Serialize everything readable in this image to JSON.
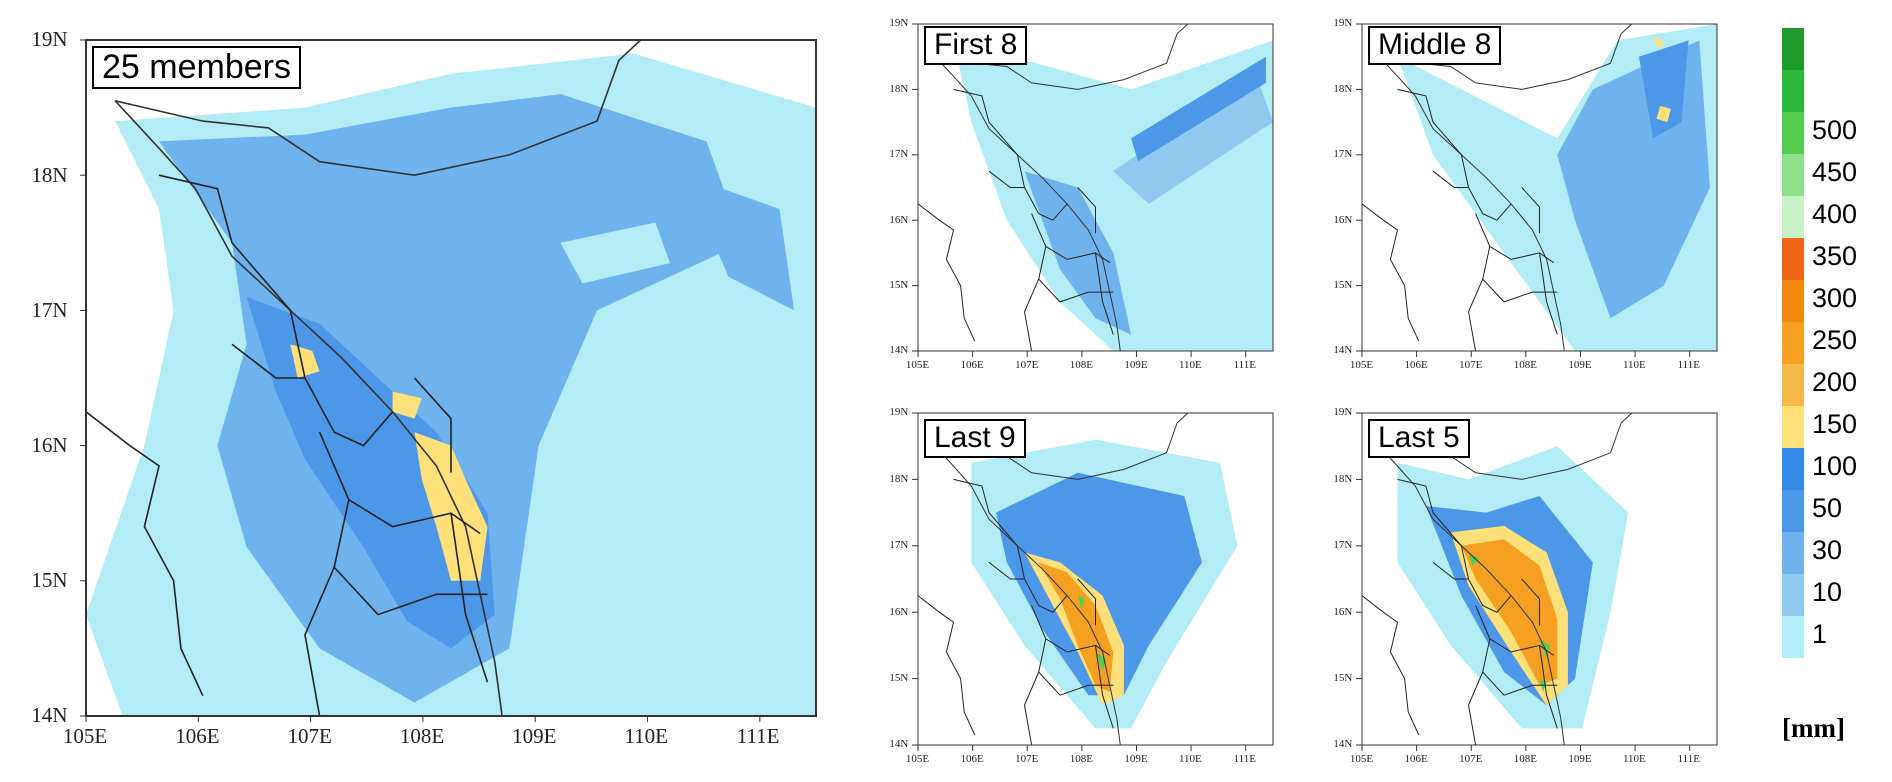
{
  "panels": [
    {
      "id": "p0",
      "title": "25 members",
      "lat_ticks": [
        "19N",
        "18N",
        "17N",
        "16N",
        "15N",
        "14N"
      ],
      "lon_ticks": [
        "105E",
        "106E",
        "107E",
        "108E",
        "109E",
        "110E",
        "111E"
      ]
    },
    {
      "id": "p1",
      "title": "First 8",
      "lat_ticks": [
        "19N",
        "18N",
        "17N",
        "16N",
        "15N",
        "14N"
      ],
      "lon_ticks": [
        "105E",
        "106E",
        "107E",
        "108E",
        "109E",
        "110E",
        "111E"
      ]
    },
    {
      "id": "p2",
      "title": "Middle 8",
      "lat_ticks": [
        "19N",
        "18N",
        "17N",
        "16N",
        "15N",
        "14N"
      ],
      "lon_ticks": [
        "105E",
        "106E",
        "107E",
        "108E",
        "109E",
        "110E",
        "111E"
      ]
    },
    {
      "id": "p3",
      "title": "Last 9",
      "lat_ticks": [
        "19N",
        "18N",
        "17N",
        "16N",
        "15N",
        "14N"
      ],
      "lon_ticks": [
        "105E",
        "106E",
        "107E",
        "108E",
        "109E",
        "110E",
        "111E"
      ]
    },
    {
      "id": "p4",
      "title": "Last 5",
      "lat_ticks": [
        "19N",
        "18N",
        "17N",
        "16N",
        "15N",
        "14N"
      ],
      "lon_ticks": [
        "105E",
        "106E",
        "107E",
        "108E",
        "109E",
        "110E",
        "111E"
      ]
    }
  ],
  "colorbar": {
    "unit": "[mm]",
    "labels": [
      "1",
      "10",
      "30",
      "50",
      "100",
      "150",
      "200",
      "250",
      "300",
      "350",
      "400",
      "450",
      "500"
    ],
    "colors": [
      "#b2ecf5",
      "#8fc9f0",
      "#6eb3ed",
      "#4d97e8",
      "#3488e6",
      "#fde07a",
      "#f7b84a",
      "#f5a020",
      "#f28a10",
      "#f06418",
      "#c7f2c5",
      "#8ee08a",
      "#55cc4f",
      "#2db83a",
      "#1f9a2c"
    ]
  }
}
